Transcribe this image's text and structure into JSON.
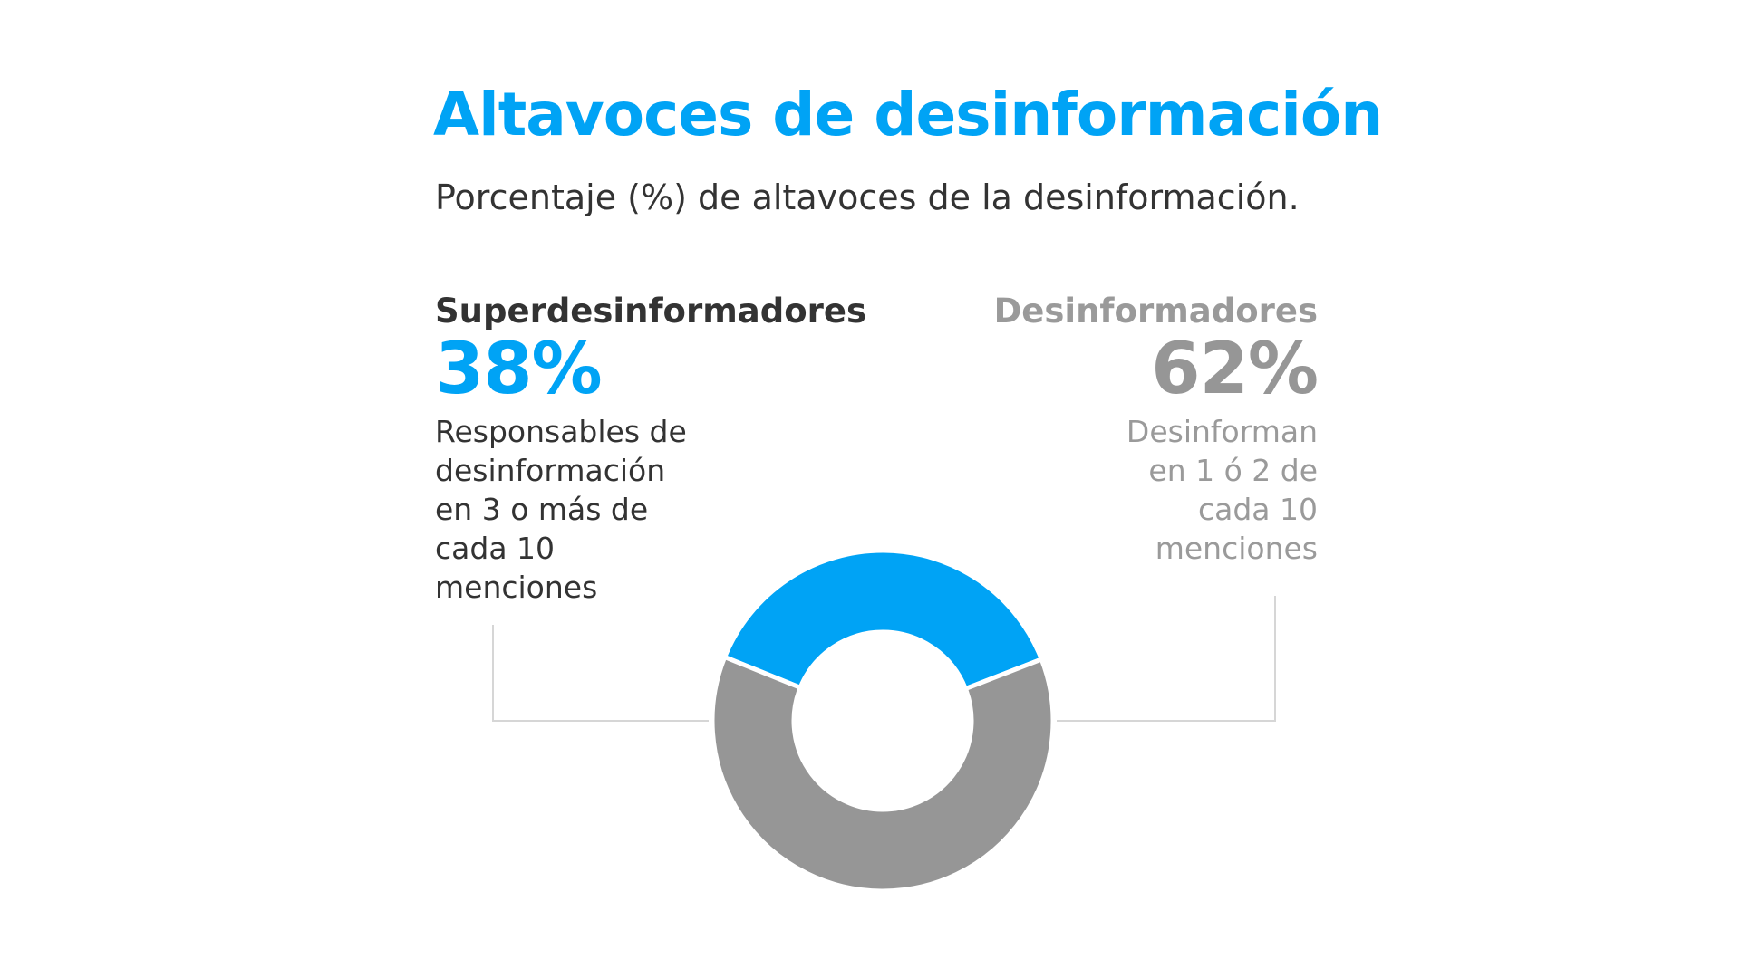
{
  "chart_data": {
    "type": "pie",
    "title": "Altavoces de desinformación",
    "subtitle": "Porcentaje (%) de altavoces de la desinformación.",
    "donut": true,
    "slices": [
      {
        "name": "Superdesinformadores",
        "value": 38,
        "value_label": "38%",
        "description": "Responsables de\ndesinformación\nen 3 o más de\ncada 10\nmenciones",
        "color": "#00a3f5"
      },
      {
        "name": "Desinformadores",
        "value": 62,
        "value_label": "62%",
        "description": "Desinforman\nen 1 ó 2 de\ncada 10\nmenciones",
        "color": "#969696"
      }
    ]
  }
}
